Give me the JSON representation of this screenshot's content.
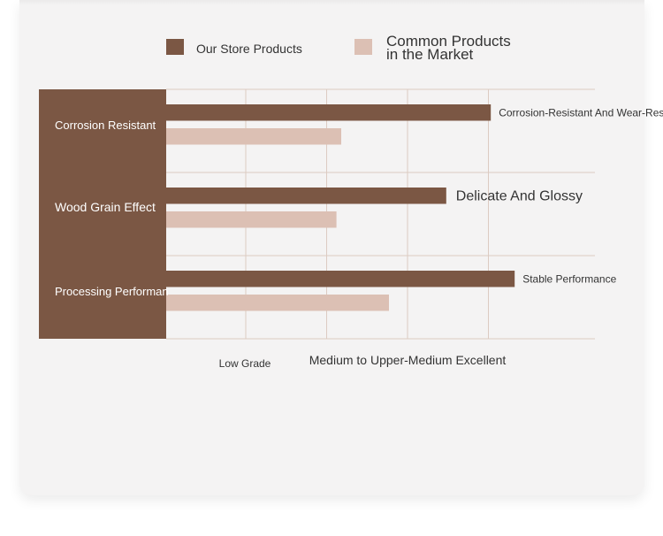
{
  "colors": {
    "store": "#7b5744",
    "market": "#dcc0b4",
    "grid": "#dccbc2",
    "text": "#333333",
    "category_label": "#ffffff"
  },
  "chart_data": {
    "type": "bar",
    "orientation": "horizontal",
    "title": "",
    "xlabel": "",
    "ylabel": "",
    "legend_position": "top",
    "grid": true,
    "xlim": [
      0,
      5.2
    ],
    "categories": [
      "Corrosion Resistant",
      "Wood Grain Effect",
      "Processing Performance"
    ],
    "category_display": [
      "Corrosion Resistant",
      "Wood Grain Effect",
      "Processing Performan"
    ],
    "series": [
      {
        "name": "Our Store Products",
        "values": [
          4.08,
          3.52,
          4.38
        ],
        "labels": [
          "Corrosion-Resistant And Wear-Resistant",
          "Delicate And Glossy",
          "Stable Performance"
        ]
      },
      {
        "name": "Common Products in the Market",
        "name_lines": [
          "Common Products",
          "in the Market"
        ],
        "values": [
          2.2,
          2.14,
          2.8
        ]
      }
    ],
    "x_tick_labels": [
      {
        "value": 1,
        "label": "Low Grade"
      },
      {
        "value": 3,
        "label": "Medium to Upper-Medium Excellent"
      }
    ]
  }
}
